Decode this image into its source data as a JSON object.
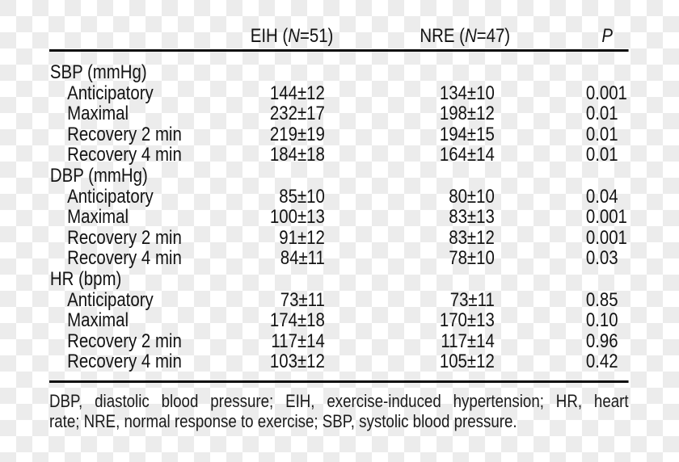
{
  "table": {
    "columns": {
      "eih": {
        "pre": "EIH (",
        "n": "N",
        "post": "=51)"
      },
      "nre": {
        "pre": "NRE (",
        "n": "N",
        "post": "=47)"
      },
      "p": "P"
    },
    "rows": [
      {
        "label": "SBP (mmHg)",
        "indent": false,
        "eih": "",
        "nre": "",
        "p": ""
      },
      {
        "label": "Anticipatory",
        "indent": true,
        "eih": "144±12",
        "nre": "134±10",
        "p": "0.001"
      },
      {
        "label": "Maximal",
        "indent": true,
        "eih": "232±17",
        "nre": "198±12",
        "p": "0.01"
      },
      {
        "label": "Recovery 2 min",
        "indent": true,
        "eih": "219±19",
        "nre": "194±15",
        "p": "0.01"
      },
      {
        "label": "Recovery 4 min",
        "indent": true,
        "eih": "184±18",
        "nre": "164±14",
        "p": "0.01"
      },
      {
        "label": "DBP (mmHg)",
        "indent": false,
        "eih": "",
        "nre": "",
        "p": ""
      },
      {
        "label": "Anticipatory",
        "indent": true,
        "eih": "85±10",
        "nre": "80±10",
        "p": "0.04"
      },
      {
        "label": "Maximal",
        "indent": true,
        "eih": "100±13",
        "nre": "83±13",
        "p": "0.001"
      },
      {
        "label": "Recovery 2 min",
        "indent": true,
        "eih": "91±12",
        "nre": "83±12",
        "p": "0.001"
      },
      {
        "label": "Recovery 4 min",
        "indent": true,
        "eih": "84±11",
        "nre": "78±10",
        "p": "0.03"
      },
      {
        "label": "HR (bpm)",
        "indent": false,
        "eih": "",
        "nre": "",
        "p": ""
      },
      {
        "label": "Anticipatory",
        "indent": true,
        "eih": "73±11",
        "nre": "73±11",
        "p": "0.85"
      },
      {
        "label": "Maximal",
        "indent": true,
        "eih": "174±18",
        "nre": "170±13",
        "p": "0.10"
      },
      {
        "label": "Recovery 2 min",
        "indent": true,
        "eih": "117±14",
        "nre": "117±14",
        "p": "0.96"
      },
      {
        "label": "Recovery 4 min",
        "indent": true,
        "eih": "103±12",
        "nre": "105±12",
        "p": "0.42"
      }
    ]
  },
  "footnote": {
    "line1": "DBP, diastolic blood pressure; EIH, exercise-induced hypertension; HR, heart",
    "line2": "rate; NRE, normal response to exercise; SBP, systolic blood pressure."
  },
  "colors": {
    "text": "#131313",
    "rule": "#0d0d0d",
    "checker_gray": "#ececec",
    "checker_white": "#ffffff"
  }
}
